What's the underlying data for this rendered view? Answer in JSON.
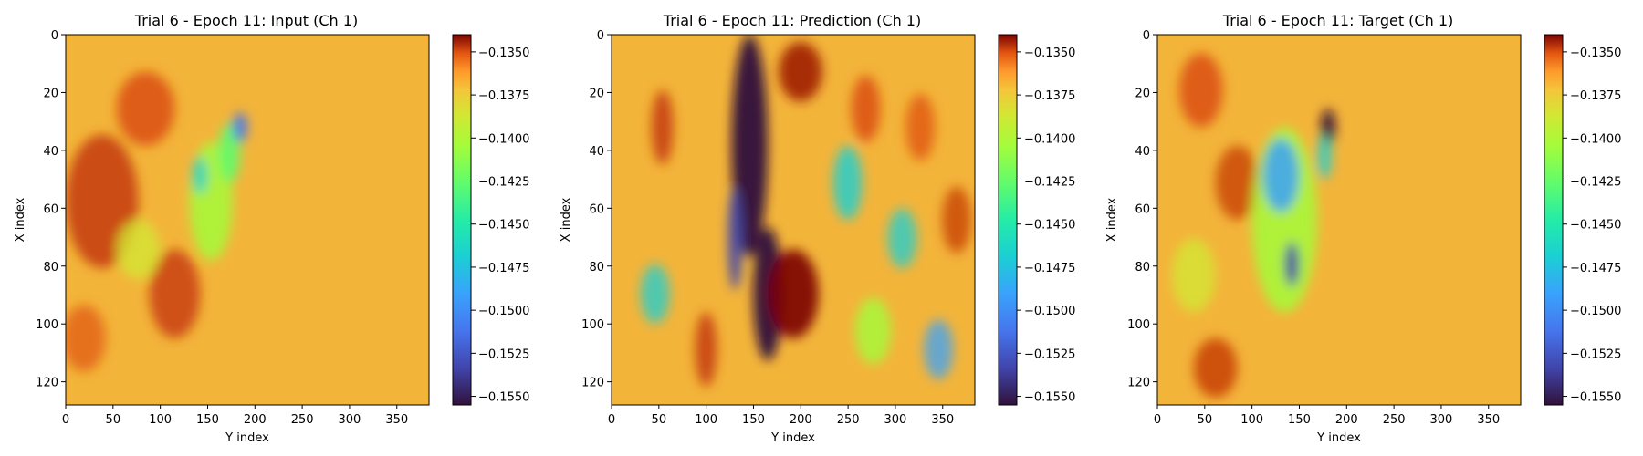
{
  "chart_data": [
    {
      "type": "heatmap",
      "title": "Trial 6 - Epoch 11: Input (Ch 1)",
      "xlabel": "Y index",
      "ylabel": "X index",
      "xlim": [
        0,
        384
      ],
      "ylim": [
        128,
        0
      ],
      "xticks": [
        "0",
        "50",
        "100",
        "150",
        "200",
        "250",
        "300",
        "350"
      ],
      "yticks": [
        "0",
        "20",
        "40",
        "60",
        "80",
        "100",
        "120"
      ],
      "colormap": "turbo",
      "colorbar": {
        "range": [
          -0.1555,
          -0.134
        ],
        "ticks": [
          "−0.1350",
          "−0.1375",
          "−0.1400",
          "−0.1425",
          "−0.1450",
          "−0.1475",
          "−0.1500",
          "−0.1525",
          "−0.1550"
        ],
        "tick_values": [
          -0.135,
          -0.1375,
          -0.14,
          -0.1425,
          -0.145,
          -0.1475,
          -0.15,
          -0.1525,
          -0.155
        ]
      }
    },
    {
      "type": "heatmap",
      "title": "Trial 6 - Epoch 11: Prediction (Ch 1)",
      "xlabel": "Y index",
      "ylabel": "X index",
      "xlim": [
        0,
        384
      ],
      "ylim": [
        128,
        0
      ],
      "xticks": [
        "0",
        "50",
        "100",
        "150",
        "200",
        "250",
        "300",
        "350"
      ],
      "yticks": [
        "0",
        "20",
        "40",
        "60",
        "80",
        "100",
        "120"
      ],
      "colormap": "turbo",
      "colorbar": {
        "range": [
          -0.1555,
          -0.134
        ],
        "ticks": [
          "−0.1350",
          "−0.1375",
          "−0.1400",
          "−0.1425",
          "−0.1450",
          "−0.1475",
          "−0.1500",
          "−0.1525",
          "−0.1550"
        ],
        "tick_values": [
          -0.135,
          -0.1375,
          -0.14,
          -0.1425,
          -0.145,
          -0.1475,
          -0.15,
          -0.1525,
          -0.155
        ]
      }
    },
    {
      "type": "heatmap",
      "title": "Trial 6 - Epoch 11: Target (Ch 1)",
      "xlabel": "Y index",
      "ylabel": "X index",
      "xlim": [
        0,
        384
      ],
      "ylim": [
        128,
        0
      ],
      "xticks": [
        "0",
        "50",
        "100",
        "150",
        "200",
        "250",
        "300",
        "350"
      ],
      "yticks": [
        "0",
        "20",
        "40",
        "60",
        "80",
        "100",
        "120"
      ],
      "colormap": "turbo",
      "colorbar": {
        "range": [
          -0.1555,
          -0.134
        ],
        "ticks": [
          "−0.1350",
          "−0.1375",
          "−0.1400",
          "−0.1425",
          "−0.1450",
          "−0.1475",
          "−0.1500",
          "−0.1525",
          "−0.1550"
        ],
        "tick_values": [
          -0.135,
          -0.1375,
          -0.14,
          -0.1425,
          -0.145,
          -0.1475,
          -0.15,
          -0.1525,
          -0.155
        ]
      }
    }
  ]
}
